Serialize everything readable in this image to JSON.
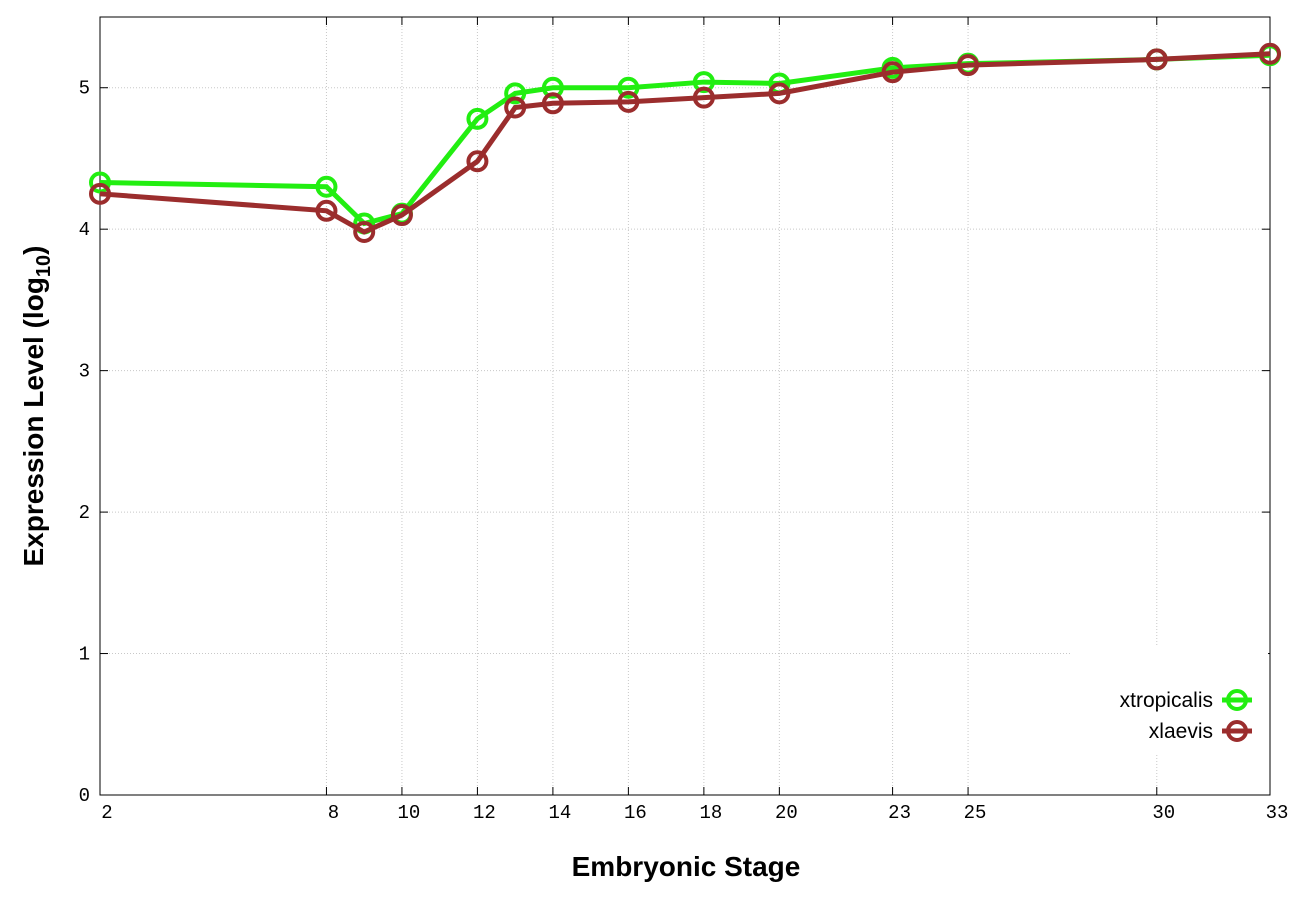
{
  "chart_data": {
    "type": "line",
    "x_label": "Embryonic Stage",
    "y_label": {
      "text": "Expression Level (log",
      "subscript": "10",
      "suffix": ")"
    },
    "x": [
      2,
      8,
      9,
      10,
      12,
      13,
      14,
      16,
      18,
      20,
      23,
      25,
      30,
      33
    ],
    "series": [
      {
        "name": "xtropicalis",
        "color": "#22ee11",
        "values": [
          4.33,
          4.3,
          4.04,
          4.11,
          4.78,
          4.96,
          5.0,
          5.0,
          5.04,
          5.03,
          5.14,
          5.17,
          5.2,
          5.23
        ]
      },
      {
        "name": "xlaevis",
        "color": "#9b2d2d",
        "values": [
          4.25,
          4.13,
          3.98,
          4.1,
          4.48,
          4.86,
          4.89,
          4.9,
          4.93,
          4.96,
          5.11,
          5.16,
          5.2,
          5.24
        ]
      }
    ],
    "xlim": [
      2,
      33
    ],
    "xticks": [
      2,
      8,
      10,
      12,
      14,
      16,
      18,
      20,
      23,
      25,
      30,
      33
    ],
    "ylim": [
      0,
      5.5
    ],
    "yticks": [
      0,
      1,
      2,
      3,
      4,
      5
    ],
    "grid": true,
    "legend": "bottom-right"
  }
}
